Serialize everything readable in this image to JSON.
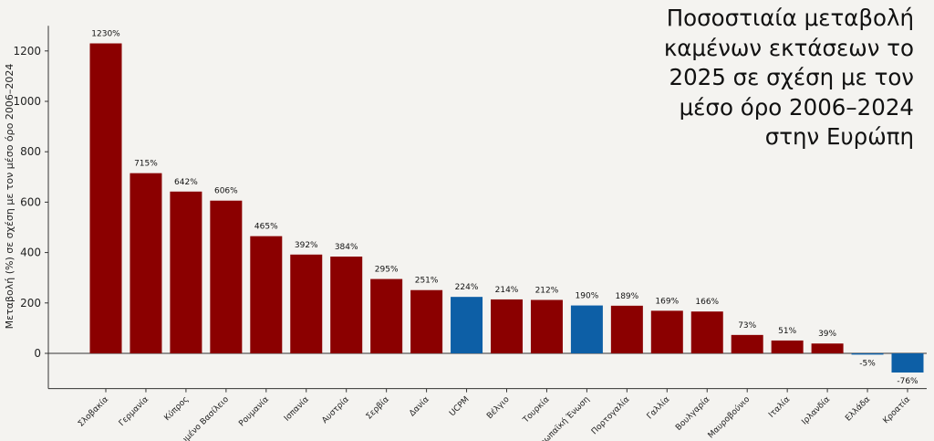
{
  "chart_data": {
    "type": "bar",
    "title_lines": [
      "Ποσοστιαία μεταβολή",
      "καμένων εκτάσεων το",
      "2025 σε σχέση με τον",
      "μέσο όρο 2006–2024",
      "στην Ευρώπη"
    ],
    "ylabel": "Μεταβολή (%) σε σχέση με τον μέσο όρο 2006–2024",
    "xlabel": "",
    "ylim": [
      -140,
      1300
    ],
    "yticks": [
      0,
      200,
      400,
      600,
      800,
      1000,
      1200
    ],
    "categories": [
      "Σλοβακία",
      "Γερμανία",
      "Κύπρος",
      "Ηνωμένο Βασίλειο",
      "Ρουμανία",
      "Ισπανία",
      "Αυστρία",
      "Σερβία",
      "Δανία",
      "UCPM",
      "Βέλγιο",
      "Τουρκία",
      "Ευρωπαϊκή Ένωση",
      "Πορτογαλία",
      "Γαλλία",
      "Βουλγαρία",
      "Μαυροβούνιο",
      "Ιταλία",
      "Ιρλανδία",
      "Ελλάδα",
      "Κροατία"
    ],
    "values": [
      1230,
      715,
      642,
      606,
      465,
      392,
      384,
      295,
      251,
      224,
      214,
      212,
      190,
      189,
      169,
      166,
      73,
      51,
      39,
      -5,
      -76
    ],
    "value_labels": [
      "1230%",
      "715%",
      "642%",
      "606%",
      "465%",
      "392%",
      "384%",
      "295%",
      "251%",
      "224%",
      "214%",
      "212%",
      "190%",
      "189%",
      "169%",
      "166%",
      "73%",
      "51%",
      "39%",
      "-5%",
      "-76%"
    ],
    "bar_colors": [
      "#8b0000",
      "#8b0000",
      "#8b0000",
      "#8b0000",
      "#8b0000",
      "#8b0000",
      "#8b0000",
      "#8b0000",
      "#8b0000",
      "#0d5fa6",
      "#8b0000",
      "#8b0000",
      "#0d5fa6",
      "#8b0000",
      "#8b0000",
      "#8b0000",
      "#8b0000",
      "#8b0000",
      "#8b0000",
      "#0d5fa6",
      "#0d5fa6"
    ],
    "grid": false
  }
}
